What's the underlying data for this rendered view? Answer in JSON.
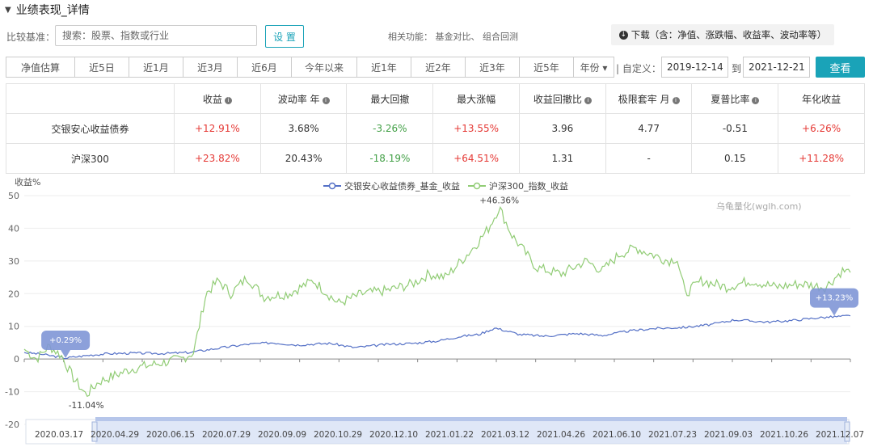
{
  "header": {
    "title": "业绩表现_详情"
  },
  "compare": {
    "label": "比较基准：",
    "placeholder": "搜索：股票、指数或行业",
    "set_button": "设 置",
    "related": "相关功能： 基金对比、 组合回测",
    "download": "下载（含：净值、涨跌幅、收益率、波动率等）"
  },
  "periods": [
    {
      "label": "净值估算",
      "w": 86
    },
    {
      "label": "近5日",
      "w": 67
    },
    {
      "label": "近1月",
      "w": 67
    },
    {
      "label": "近3月",
      "w": 67
    },
    {
      "label": "近6月",
      "w": 67
    },
    {
      "label": "今年以来",
      "w": 81
    },
    {
      "label": "近1年",
      "w": 67
    },
    {
      "label": "近2年",
      "w": 67
    },
    {
      "label": "近3年",
      "w": 67
    },
    {
      "label": "近5年",
      "w": 67
    },
    {
      "label": "年份 ▾",
      "w": 50
    }
  ],
  "custom": {
    "label": "| 自定义：",
    "start": "2019-12-14",
    "to": "到",
    "end": "2021-12-21",
    "query": "查看"
  },
  "table": {
    "headers": [
      {
        "text": "",
        "info": false
      },
      {
        "text": "收益",
        "info": true
      },
      {
        "text": "波动率 年",
        "info": true
      },
      {
        "text": "最大回撤",
        "info": false
      },
      {
        "text": "最大涨幅",
        "info": false
      },
      {
        "text": "收益回撤比",
        "info": true
      },
      {
        "text": "极限套牢 月",
        "info": true
      },
      {
        "text": "夏普比率",
        "info": true
      },
      {
        "text": "年化收益",
        "info": false
      }
    ],
    "rows": [
      {
        "name": "交银安心收益债券",
        "cells": [
          [
            "+12.91%",
            "red"
          ],
          [
            "3.68%",
            "dark"
          ],
          [
            "-3.26%",
            "green"
          ],
          [
            "+13.55%",
            "red"
          ],
          [
            "3.96",
            "dark"
          ],
          [
            "4.77",
            "dark"
          ],
          [
            "-0.51",
            "dark"
          ],
          [
            "+6.26%",
            "red"
          ]
        ]
      },
      {
        "name": "沪深300",
        "cells": [
          [
            "+23.82%",
            "red"
          ],
          [
            "20.43%",
            "dark"
          ],
          [
            "-18.19%",
            "green"
          ],
          [
            "+64.51%",
            "red"
          ],
          [
            "1.31",
            "dark"
          ],
          [
            "-",
            "dark"
          ],
          [
            "0.15",
            "dark"
          ],
          [
            "+11.28%",
            "red"
          ]
        ]
      }
    ]
  },
  "watermark": "乌龟量化(wglh.com)",
  "chart_data": {
    "type": "line",
    "ylabel": "收益%",
    "ylim": [
      -20,
      50
    ],
    "yticks": [
      50,
      40,
      30,
      20,
      10,
      0,
      -10,
      -20
    ],
    "legend_position": "top-center",
    "xticks": [
      "2020.03.17",
      "2020.04.29",
      "2020.06.15",
      "2020.07.29",
      "2020.09.09",
      "2020.10.29",
      "2020.12.10",
      "2021.01.22",
      "2021.03.12",
      "2021.04.26",
      "2021.06.10",
      "2021.07.23",
      "2021.09.03",
      "2021.10.26",
      "2021.12.07"
    ],
    "series": [
      {
        "name": "交银安心收益债券_基金_收益",
        "color": "#5470c6",
        "x": [
          0,
          0.02,
          0.05,
          0.08,
          0.1,
          0.13,
          0.17,
          0.2,
          0.24,
          0.27,
          0.3,
          0.33,
          0.37,
          0.4,
          0.44,
          0.47,
          0.5,
          0.53,
          0.55,
          0.57,
          0.6,
          0.63,
          0.67,
          0.7,
          0.73,
          0.76,
          0.8,
          0.83,
          0.86,
          0.9,
          0.93,
          0.96,
          1.0
        ],
        "y": [
          2,
          1.5,
          0.29,
          1.2,
          1.6,
          1.8,
          1.7,
          2,
          3.5,
          4.5,
          5,
          4.3,
          4.8,
          3.5,
          4.5,
          4.8,
          5.5,
          7,
          7.5,
          9.5,
          7.5,
          7,
          7.8,
          7.2,
          8.5,
          9.3,
          9.7,
          10.5,
          12,
          11.3,
          11.8,
          12.6,
          13.23
        ]
      },
      {
        "name": "沪深300_指数_收益",
        "color": "#91cc75",
        "x": [
          0,
          0.015,
          0.03,
          0.045,
          0.06,
          0.075,
          0.09,
          0.11,
          0.13,
          0.15,
          0.17,
          0.19,
          0.205,
          0.22,
          0.235,
          0.25,
          0.27,
          0.29,
          0.32,
          0.35,
          0.38,
          0.41,
          0.44,
          0.47,
          0.49,
          0.51,
          0.525,
          0.54,
          0.55,
          0.562,
          0.575,
          0.59,
          0.62,
          0.65,
          0.68,
          0.7,
          0.72,
          0.74,
          0.76,
          0.78,
          0.79,
          0.8,
          0.82,
          0.85,
          0.88,
          0.91,
          0.94,
          0.97,
          0.99,
          1.0
        ],
        "y": [
          3,
          0,
          4,
          1,
          -6,
          -11.04,
          -7,
          -5,
          -3,
          -2,
          -1,
          0,
          2,
          20,
          24,
          20,
          25,
          19,
          20,
          24,
          17,
          20,
          21,
          23,
          26,
          25,
          29,
          33,
          36,
          40,
          46.36,
          38,
          28,
          26,
          30,
          27,
          32,
          34,
          32,
          30,
          31,
          20,
          24,
          22,
          24,
          22,
          23,
          22,
          27,
          26.5
        ]
      }
    ],
    "annotations": [
      {
        "series": 1,
        "text": "+46.36%",
        "x": 0.575,
        "y": 46.36
      },
      {
        "series": 1,
        "text": "-11.04%",
        "x": 0.075,
        "y": -11.04
      },
      {
        "series": 0,
        "text": "+0.29%",
        "x": 0.05,
        "y": 0.29
      },
      {
        "series": 0,
        "text": "+13.23%",
        "x": 1.0,
        "y": 13.23
      }
    ]
  }
}
